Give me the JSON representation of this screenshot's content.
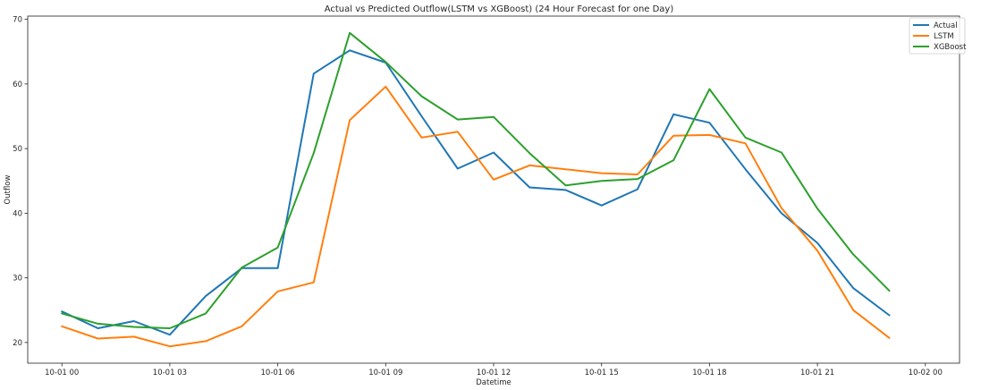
{
  "chart_data": {
    "type": "line",
    "title": "Actual vs Predicted Outflow(LSTM vs XGBoost) (24 Hour Forecast for one Day)",
    "xlabel": "Datetime",
    "ylabel": "Outflow",
    "x_hours": [
      0,
      1,
      2,
      3,
      4,
      5,
      6,
      7,
      8,
      9,
      10,
      11,
      12,
      13,
      14,
      15,
      16,
      17,
      18,
      19,
      20,
      21,
      22,
      23
    ],
    "xlim": [
      -0.95,
      24.95
    ],
    "ylim": [
      16.8,
      70.5
    ],
    "x_ticks": [
      {
        "value": 0,
        "label": "10-01 00"
      },
      {
        "value": 3,
        "label": "10-01 03"
      },
      {
        "value": 6,
        "label": "10-01 06"
      },
      {
        "value": 9,
        "label": "10-01 09"
      },
      {
        "value": 12,
        "label": "10-01 12"
      },
      {
        "value": 15,
        "label": "10-01 15"
      },
      {
        "value": 18,
        "label": "10-01 18"
      },
      {
        "value": 21,
        "label": "10-01 21"
      },
      {
        "value": 24,
        "label": "10-02 00"
      }
    ],
    "y_ticks": [
      20,
      30,
      40,
      50,
      60,
      70
    ],
    "grid": false,
    "legend_position": "top-right",
    "series": [
      {
        "name": "Actual",
        "color": "#1f77b4",
        "values": [
          24.8,
          22.2,
          23.3,
          21.2,
          27.2,
          31.5,
          31.5,
          61.6,
          65.2,
          63.3,
          55.0,
          46.9,
          49.4,
          44.0,
          43.6,
          41.2,
          43.7,
          55.3,
          54.0,
          46.8,
          40.0,
          35.4,
          28.4,
          24.2
        ]
      },
      {
        "name": "LSTM",
        "color": "#ff7f0e",
        "values": [
          22.5,
          20.6,
          20.9,
          19.4,
          20.2,
          22.5,
          27.9,
          29.3,
          54.4,
          59.6,
          51.7,
          52.6,
          45.2,
          47.4,
          46.8,
          46.2,
          46.0,
          52.0,
          52.1,
          50.8,
          40.8,
          34.2,
          25.0,
          20.7
        ]
      },
      {
        "name": "XGBoost",
        "color": "#2ca02c",
        "values": [
          24.5,
          22.9,
          22.4,
          22.2,
          24.5,
          31.6,
          34.7,
          49.3,
          67.9,
          63.4,
          58.1,
          54.5,
          54.9,
          49.3,
          44.3,
          45.0,
          45.3,
          48.2,
          59.2,
          51.7,
          49.4,
          40.7,
          33.6,
          28.0
        ]
      }
    ]
  }
}
